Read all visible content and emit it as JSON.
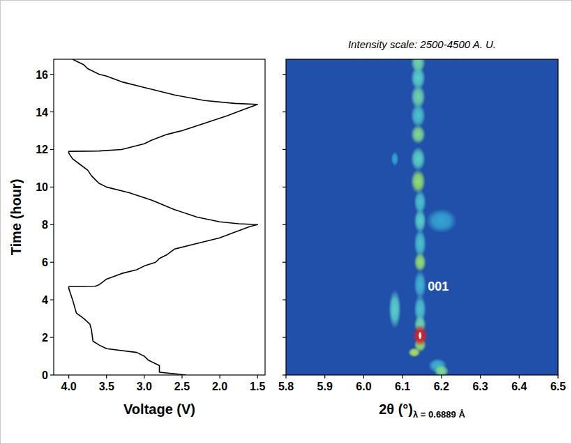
{
  "chart_data": [
    {
      "type": "line",
      "xlabel": "Voltage (V)",
      "ylabel": "Time (hour)",
      "xlim": [
        4.2,
        1.4
      ],
      "ylim": [
        0,
        16.8
      ],
      "xticks": [
        {
          "value": 4,
          "label": "4.0"
        },
        3.5,
        {
          "value": 3,
          "label": "3.0"
        },
        2.5,
        {
          "value": 2,
          "label": "2.0"
        },
        1.5
      ],
      "yticks": [
        0,
        2,
        4,
        6,
        8,
        10,
        12,
        14,
        16
      ],
      "x": [
        2.45,
        2.8,
        2.8,
        2.95,
        3.0,
        3.1,
        3.5,
        3.6,
        3.68,
        3.7,
        3.72,
        3.8,
        3.9,
        3.95,
        4.0,
        4.0,
        3.65,
        3.6,
        3.5,
        3.3,
        3.1,
        3.0,
        2.85,
        2.8,
        2.7,
        2.6,
        2.3,
        2.0,
        1.8,
        1.6,
        1.5,
        1.75,
        2.0,
        2.3,
        2.6,
        2.9,
        3.2,
        3.5,
        3.6,
        3.65,
        3.7,
        3.75,
        3.85,
        3.95,
        4.0,
        4.0,
        3.6,
        3.3,
        3.0,
        2.9,
        2.7,
        2.5,
        2.2,
        1.9,
        1.7,
        1.5,
        1.8,
        2.2,
        2.6,
        3.0,
        3.3,
        3.5,
        3.6,
        3.75,
        3.8,
        3.9,
        3.95
      ],
      "series": [
        {
          "color": "#000000",
          "line_style": "solid",
          "values": [
            0.0,
            0.15,
            0.5,
            0.8,
            1.0,
            1.2,
            1.4,
            1.6,
            1.8,
            2.4,
            2.7,
            3.0,
            3.3,
            4.0,
            4.6,
            4.7,
            4.72,
            4.8,
            5.1,
            5.4,
            5.6,
            5.8,
            6.0,
            6.2,
            6.4,
            6.7,
            7.0,
            7.3,
            7.6,
            7.9,
            8.0,
            8.05,
            8.15,
            8.4,
            8.8,
            9.3,
            9.7,
            10.0,
            10.2,
            10.4,
            10.6,
            10.9,
            11.2,
            11.5,
            11.8,
            11.9,
            11.92,
            12.0,
            12.3,
            12.5,
            12.8,
            13.0,
            13.4,
            13.8,
            14.1,
            14.4,
            14.45,
            14.6,
            14.9,
            15.3,
            15.6,
            15.9,
            16.0,
            16.3,
            16.5,
            16.7,
            16.8
          ]
        }
      ]
    },
    {
      "type": "heatmap",
      "title": "Intensity scale: 2500-4500 A. U.",
      "xlabel": "2θ (°)",
      "xlabel_sub": "λ = 0.6889 Å",
      "xlim": [
        5.8,
        6.5
      ],
      "ylim": [
        0,
        16.8
      ],
      "xticks": [
        5.8,
        5.9,
        {
          "value": 6,
          "label": "6.0"
        },
        6.1,
        6.2,
        6.3,
        6.4,
        6.5
      ],
      "yticks": [
        0,
        2,
        4,
        6,
        8,
        10,
        12,
        14,
        16
      ],
      "tick_labels": "x",
      "zlim": [
        2500,
        4500
      ],
      "spots": [
        {
          "x": 6.19,
          "y": 0.5,
          "value": 3300,
          "dx": 0.015,
          "dy": 0.3
        },
        {
          "x": 6.2,
          "y": 8.2,
          "value": 3200,
          "dx": 0.025,
          "dy": 0.5
        },
        {
          "x": 6.08,
          "y": 11.5,
          "value": 3200,
          "dx": 0.006,
          "dy": 0.3
        },
        {
          "x": 6.145,
          "y": 4.8,
          "value": 3300,
          "dx": 0.01,
          "dy": 0.6
        },
        {
          "x": 6.145,
          "y": 3.5,
          "value": 3400,
          "dx": 0.01,
          "dy": 0.6
        },
        {
          "x": 6.145,
          "y": 7.0,
          "value": 3400,
          "dx": 0.01,
          "dy": 0.6
        },
        {
          "x": 6.145,
          "y": 9.2,
          "value": 3400,
          "dx": 0.01,
          "dy": 0.5
        },
        {
          "x": 6.14,
          "y": 13.8,
          "value": 3400,
          "dx": 0.012,
          "dy": 0.5
        },
        {
          "x": 6.08,
          "y": 3.5,
          "value": 3500,
          "dx": 0.01,
          "dy": 0.8
        },
        {
          "x": 6.145,
          "y": 8.2,
          "value": 3500,
          "dx": 0.01,
          "dy": 0.5
        },
        {
          "x": 6.14,
          "y": 11.5,
          "value": 3500,
          "dx": 0.012,
          "dy": 0.5
        },
        {
          "x": 6.14,
          "y": 15.8,
          "value": 3500,
          "dx": 0.012,
          "dy": 0.5
        },
        {
          "x": 6.145,
          "y": 2.7,
          "value": 3600,
          "dx": 0.01,
          "dy": 0.35
        },
        {
          "x": 6.14,
          "y": 14.8,
          "value": 3600,
          "dx": 0.012,
          "dy": 0.5
        },
        {
          "x": 6.14,
          "y": 16.6,
          "value": 3600,
          "dx": 0.012,
          "dy": 0.4
        },
        {
          "x": 6.2,
          "y": 0.2,
          "value": 3700,
          "dx": 0.012,
          "dy": 0.25
        },
        {
          "x": 6.14,
          "y": 12.8,
          "value": 3700,
          "dx": 0.012,
          "dy": 0.4
        },
        {
          "x": 6.145,
          "y": 1.6,
          "value": 3800,
          "dx": 0.01,
          "dy": 0.3
        },
        {
          "x": 6.145,
          "y": 6.0,
          "value": 3800,
          "dx": 0.01,
          "dy": 0.4
        },
        {
          "x": 6.14,
          "y": 10.3,
          "value": 3800,
          "dx": 0.012,
          "dy": 0.5
        },
        {
          "x": 6.13,
          "y": 1.2,
          "value": 3900,
          "dx": 0.01,
          "dy": 0.2
        },
        {
          "x": 6.145,
          "y": 2.1,
          "value": 4500,
          "dx": 0.012,
          "dy": 0.45
        }
      ],
      "annotations": [
        {
          "text": "001",
          "x": 6.165,
          "y": 4.5
        }
      ]
    }
  ]
}
